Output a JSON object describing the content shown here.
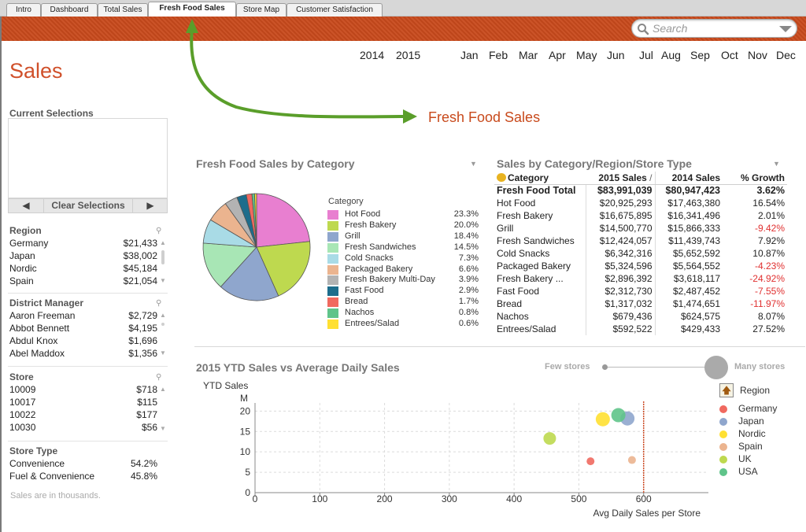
{
  "tabs": [
    {
      "label": "Intro",
      "active": false
    },
    {
      "label": "Dashboard",
      "active": false
    },
    {
      "label": "Total Sales",
      "active": false
    },
    {
      "label": "Fresh Food Sales",
      "active": true
    },
    {
      "label": "Store Map",
      "active": false
    },
    {
      "label": "Customer Satisfaction",
      "active": false
    }
  ],
  "search": {
    "placeholder": "Search"
  },
  "years": [
    "2014",
    "2015"
  ],
  "months": [
    "Jan",
    "Feb",
    "Mar",
    "Apr",
    "May",
    "Jun",
    "Jul",
    "Aug",
    "Sep",
    "Oct",
    "Nov",
    "Dec"
  ],
  "page_title": "Sales",
  "annotation": "Fresh Food Sales",
  "colors": {
    "accent": "#c84a1c",
    "negative": "#e03030",
    "arrow": "#5a9e2a"
  },
  "current_selections": {
    "title": "Current Selections",
    "prev_icon": "left-arrow-icon",
    "clear_label": "Clear Selections",
    "next_icon": "right-arrow-icon"
  },
  "region_list": {
    "title": "Region",
    "items": [
      {
        "name": "Germany",
        "value": "$21,433"
      },
      {
        "name": "Japan",
        "value": "$38,002"
      },
      {
        "name": "Nordic",
        "value": "$45,184"
      },
      {
        "name": "Spain",
        "value": "$21,054"
      }
    ]
  },
  "district_list": {
    "title": "District Manager",
    "items": [
      {
        "name": "Aaron Freeman",
        "value": "$2,729"
      },
      {
        "name": "Abbot Bennett",
        "value": "$4,195"
      },
      {
        "name": "Abdul Knox",
        "value": "$1,696"
      },
      {
        "name": "Abel Maddox",
        "value": "$1,356"
      }
    ]
  },
  "store_list": {
    "title": "Store",
    "items": [
      {
        "name": "10009",
        "value": "$718"
      },
      {
        "name": "10017",
        "value": "$115"
      },
      {
        "name": "10022",
        "value": "$177"
      },
      {
        "name": "10030",
        "value": "$56"
      }
    ]
  },
  "store_type_list": {
    "title": "Store Type",
    "items": [
      {
        "name": "Convenience",
        "value": "54.2%"
      },
      {
        "name": "Fuel & Convenience",
        "value": "45.8%"
      }
    ]
  },
  "footnote": "Sales are in thousands.",
  "pie_panel": {
    "title": "Fresh Food Sales by Category",
    "legend_title": "Category"
  },
  "table_panel": {
    "title": "Sales by Category/Region/Store Type",
    "headers": [
      "Category",
      "2015 Sales",
      "2014 Sales",
      "% Growth"
    ],
    "sort_marker": "/",
    "total": {
      "name": "Fresh Food Total",
      "s2015": "$83,991,039",
      "s2014": "$80,947,423",
      "growth": "3.62%"
    },
    "rows": [
      {
        "name": "Hot Food",
        "s2015": "$20,925,293",
        "s2014": "$17,463,380",
        "growth": "16.54%",
        "negative": false
      },
      {
        "name": "Fresh Bakery",
        "s2015": "$16,675,895",
        "s2014": "$16,341,496",
        "growth": "2.01%",
        "negative": false
      },
      {
        "name": "Grill",
        "s2015": "$14,500,770",
        "s2014": "$15,866,333",
        "growth": "-9.42%",
        "negative": true
      },
      {
        "name": "Fresh Sandwiches",
        "s2015": "$12,424,057",
        "s2014": "$11,439,743",
        "growth": "7.92%",
        "negative": false
      },
      {
        "name": "Cold Snacks",
        "s2015": "$6,342,316",
        "s2014": "$5,652,592",
        "growth": "10.87%",
        "negative": false
      },
      {
        "name": "Packaged Bakery",
        "s2015": "$5,324,596",
        "s2014": "$5,564,552",
        "growth": "-4.23%",
        "negative": true
      },
      {
        "name": "Fresh Bakery ...",
        "s2015": "$2,896,392",
        "s2014": "$3,618,117",
        "growth": "-24.92%",
        "negative": true
      },
      {
        "name": "Fast Food",
        "s2015": "$2,312,730",
        "s2014": "$2,487,452",
        "growth": "-7.55%",
        "negative": true
      },
      {
        "name": "Bread",
        "s2015": "$1,317,032",
        "s2014": "$1,474,651",
        "growth": "-11.97%",
        "negative": true
      },
      {
        "name": "Nachos",
        "s2015": "$679,436",
        "s2014": "$624,575",
        "growth": "8.07%",
        "negative": false
      },
      {
        "name": "Entrees/Salad",
        "s2015": "$592,522",
        "s2014": "$429,433",
        "growth": "27.52%",
        "negative": false
      }
    ]
  },
  "scatter_panel": {
    "title": "2015 YTD Sales vs Average Daily Sales",
    "slider_min_label": "Few stores",
    "slider_max_label": "Many stores",
    "legend_title": "Region"
  },
  "chart_data": [
    {
      "type": "pie",
      "categories": [
        "Hot Food",
        "Fresh Bakery",
        "Grill",
        "Fresh Sandwiches",
        "Cold Snacks",
        "Packaged Bakery",
        "Fresh Bakery Multi-Day",
        "Fast Food",
        "Bread",
        "Nachos",
        "Entrees/Salad"
      ],
      "values": [
        23.3,
        20.0,
        18.4,
        14.5,
        7.3,
        6.6,
        3.9,
        2.9,
        1.7,
        0.8,
        0.6
      ],
      "labels": [
        "23.3%",
        "20.0%",
        "18.4%",
        "14.5%",
        "7.3%",
        "6.6%",
        "3.9%",
        "2.9%",
        "1.7%",
        "0.8%",
        "0.6%"
      ],
      "colors": [
        "#e87fd0",
        "#bed94f",
        "#8fa6cd",
        "#a8e6b5",
        "#a9dbe6",
        "#ebb48f",
        "#b3b3b3",
        "#1d6d8c",
        "#f0695f",
        "#5fc48a",
        "#ffe032"
      ]
    },
    {
      "type": "scatter",
      "xlabel": "Avg Daily Sales per Store",
      "ylabel": "YTD Sales",
      "yunit": "M",
      "xlim": [
        0,
        700
      ],
      "ylim": [
        0,
        22
      ],
      "xticks": [
        0,
        100,
        200,
        300,
        400,
        500,
        600
      ],
      "yticks": [
        0,
        5,
        10,
        15,
        20
      ],
      "reference_line_x": 600,
      "series": [
        {
          "name": "Germany",
          "color": "#f0695f",
          "x": [
            518
          ],
          "y": [
            7.7
          ],
          "size": [
            5
          ]
        },
        {
          "name": "Japan",
          "color": "#8fa6cd",
          "x": [
            575
          ],
          "y": [
            18.2
          ],
          "size": [
            9
          ]
        },
        {
          "name": "Nordic",
          "color": "#ffe032",
          "x": [
            537
          ],
          "y": [
            18.0
          ],
          "size": [
            9
          ]
        },
        {
          "name": "Spain",
          "color": "#ebb48f",
          "x": [
            582
          ],
          "y": [
            8.0
          ],
          "size": [
            5
          ]
        },
        {
          "name": "UK",
          "color": "#bed94f",
          "x": [
            455
          ],
          "y": [
            13.3
          ],
          "size": [
            8
          ]
        },
        {
          "name": "USA",
          "color": "#5fc48a",
          "x": [
            561
          ],
          "y": [
            19.0
          ],
          "size": [
            9
          ]
        }
      ]
    }
  ]
}
